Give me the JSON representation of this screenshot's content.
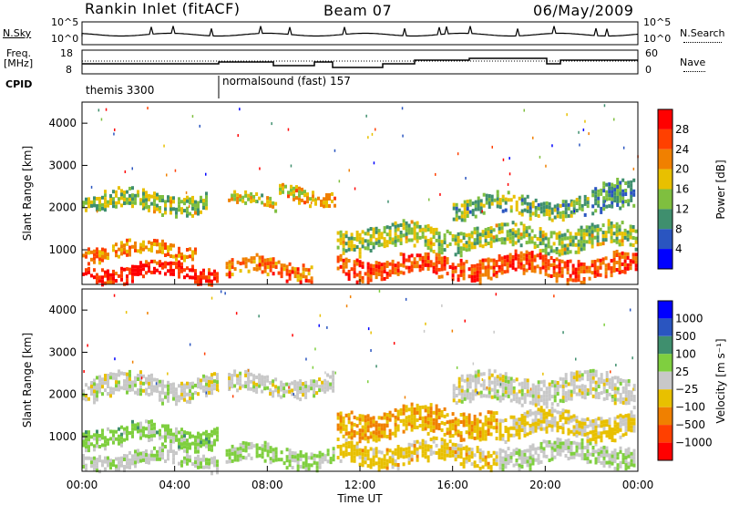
{
  "header": {
    "station": "Rankin Inlet (fitACF)",
    "beam": "Beam 07",
    "date": "06/May/2009"
  },
  "side_labels": {
    "nsky": "N.Sky",
    "freq": "Freq.",
    "mhz": "[MHz]",
    "cpid": "CPID",
    "nsearch": "N.Search",
    "nave": "Nave"
  },
  "strip_ticks": {
    "nsky_left": [
      "10^5",
      "10^0"
    ],
    "nsky_right": [
      "10^5",
      "10^0"
    ],
    "freq_left": [
      "18",
      "8"
    ],
    "nave_right": [
      "60",
      "0"
    ]
  },
  "cpid_labels": [
    "themis 3300",
    "normalsound (fast) 157"
  ],
  "colors": {
    "power_scale": [
      "#0000ff",
      "#2a55c0",
      "#3f8f6e",
      "#7fbf3f",
      "#e8c000",
      "#f08000",
      "#ff4000",
      "#ff0000"
    ],
    "velocity_scale": [
      "#ff0000",
      "#ff4000",
      "#f08000",
      "#e8c000",
      "#c8c8c8",
      "#7fcf3f",
      "#3f8f6e",
      "#2a55c0",
      "#0000ff"
    ]
  },
  "chart_data": [
    {
      "type": "heatmap",
      "title": "",
      "xlabel": "Time UT",
      "ylabel": "Slant Range [km]",
      "x_ticks": [
        "00:00",
        "04:00",
        "08:00",
        "12:00",
        "16:00",
        "20:00",
        "00:00"
      ],
      "y_ticks": [
        "1000",
        "2000",
        "3000",
        "4000"
      ],
      "xlim": [
        0,
        24
      ],
      "ylim": [
        180,
        4500
      ],
      "colorbar": {
        "label": "Power [dB]",
        "ticks": [
          "4",
          "8",
          "12",
          "16",
          "20",
          "24",
          "28"
        ],
        "range": [
          0,
          30
        ]
      },
      "regions": [
        {
          "t": [
            0.0,
            6.0
          ],
          "r": [
            180,
            700
          ],
          "value": 27
        },
        {
          "t": [
            0.0,
            5.0
          ],
          "r": [
            700,
            1200
          ],
          "value": 20
        },
        {
          "t": [
            0.0,
            5.5
          ],
          "r": [
            1800,
            2400
          ],
          "value": 14
        },
        {
          "t": [
            6.2,
            10.0
          ],
          "r": [
            250,
            800
          ],
          "value": 22
        },
        {
          "t": [
            6.3,
            8.5
          ],
          "r": [
            1900,
            2300
          ],
          "value": 16
        },
        {
          "t": [
            8.5,
            11.0
          ],
          "r": [
            2000,
            2500
          ],
          "value": 18
        },
        {
          "t": [
            11.0,
            24.0
          ],
          "r": [
            250,
            900
          ],
          "value": 24
        },
        {
          "t": [
            11.0,
            24.0
          ],
          "r": [
            900,
            1600
          ],
          "value": 14
        },
        {
          "t": [
            16.0,
            22.0
          ],
          "r": [
            1700,
            2300
          ],
          "value": 12
        },
        {
          "t": [
            22.0,
            24.0
          ],
          "r": [
            1800,
            2600
          ],
          "value": 10
        }
      ]
    },
    {
      "type": "heatmap",
      "title": "",
      "xlabel": "Time UT",
      "ylabel": "Slant Range [km]",
      "x_ticks": [
        "00:00",
        "04:00",
        "08:00",
        "12:00",
        "16:00",
        "20:00",
        "00:00"
      ],
      "y_ticks": [
        "1000",
        "2000",
        "3000",
        "4000"
      ],
      "xlim": [
        0,
        24
      ],
      "ylim": [
        180,
        4500
      ],
      "colorbar": {
        "label": "Velocity [m s⁻¹]",
        "ticks": [
          "1000",
          "500",
          "100",
          "25",
          "−25",
          "−100",
          "−500",
          "−1000"
        ],
        "range": [
          -1000,
          1000
        ]
      },
      "regions": [
        {
          "t": [
            0.0,
            6.0
          ],
          "r": [
            180,
            700
          ],
          "value": 50
        },
        {
          "t": [
            0.0,
            6.0
          ],
          "r": [
            700,
            1300
          ],
          "value": 200
        },
        {
          "t": [
            0.0,
            6.0
          ],
          "r": [
            1800,
            2500
          ],
          "value": 0
        },
        {
          "t": [
            6.2,
            11.0
          ],
          "r": [
            250,
            800
          ],
          "value": 150
        },
        {
          "t": [
            6.3,
            11.0
          ],
          "r": [
            1900,
            2500
          ],
          "value": 0
        },
        {
          "t": [
            11.0,
            18.0
          ],
          "r": [
            250,
            900
          ],
          "value": -200
        },
        {
          "t": [
            11.0,
            18.0
          ],
          "r": [
            900,
            1700
          ],
          "value": -300
        },
        {
          "t": [
            18.0,
            24.0
          ],
          "r": [
            250,
            900
          ],
          "value": 60
        },
        {
          "t": [
            18.0,
            24.0
          ],
          "r": [
            900,
            1600
          ],
          "value": -150
        },
        {
          "t": [
            16.0,
            24.0
          ],
          "r": [
            1700,
            2500
          ],
          "value": 0
        }
      ]
    }
  ]
}
